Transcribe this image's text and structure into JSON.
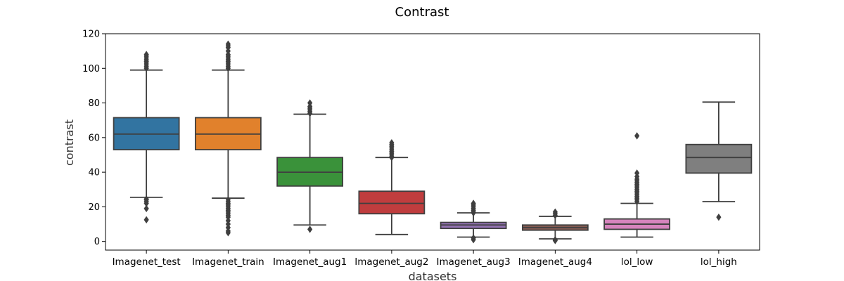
{
  "chart_data": {
    "type": "boxplot",
    "title": "Contrast",
    "xlabel": "datasets",
    "ylabel": "contrast",
    "ylim": [
      -5,
      120
    ],
    "yticks": [
      0,
      20,
      40,
      60,
      80,
      100,
      120
    ],
    "grid": false,
    "categories": [
      "Imagenet_test",
      "Imagenet_train",
      "Imagenet_aug1",
      "Imagenet_aug2",
      "Imagenet_aug3",
      "Imagenet_aug4",
      "lol_low",
      "lol_high"
    ],
    "boxes": [
      {
        "name": "Imagenet_test",
        "color": "#3274a1",
        "whislo": 25.5,
        "q1": 53,
        "med": 62,
        "q3": 71.5,
        "whishi": 99,
        "fliers": [
          12.5,
          19,
          22,
          23,
          24,
          24.5,
          100,
          101,
          102,
          103,
          104,
          105,
          106,
          107,
          108
        ]
      },
      {
        "name": "Imagenet_train",
        "color": "#e1812c",
        "whislo": 25,
        "q1": 53,
        "med": 62,
        "q3": 71.5,
        "whishi": 99,
        "fliers": [
          5,
          6,
          8,
          10,
          12,
          14,
          15,
          16,
          17,
          18,
          19,
          20,
          21,
          22,
          23,
          24,
          100,
          101,
          102,
          103,
          104,
          105,
          106,
          107,
          108,
          110,
          112,
          113,
          114
        ]
      },
      {
        "name": "Imagenet_aug1",
        "color": "#3a923a",
        "whislo": 9.5,
        "q1": 32,
        "med": 40,
        "q3": 48.5,
        "whishi": 73.5,
        "fliers": [
          7,
          74,
          75,
          76,
          77,
          78,
          80
        ]
      },
      {
        "name": "Imagenet_aug2",
        "color": "#c03d3e",
        "whislo": 4,
        "q1": 16,
        "med": 22,
        "q3": 29,
        "whishi": 48.5,
        "fliers": [
          48.5,
          49,
          50,
          51,
          52,
          53,
          54,
          55,
          56,
          57
        ]
      },
      {
        "name": "Imagenet_aug3",
        "color": "#9372b2",
        "whislo": 2.5,
        "q1": 7.5,
        "med": 9.5,
        "q3": 11,
        "whishi": 16.5,
        "fliers": [
          1,
          2,
          16.5,
          17,
          18,
          19,
          20,
          21,
          22
        ]
      },
      {
        "name": "Imagenet_aug4",
        "color": "#845b53",
        "whislo": 1.5,
        "q1": 6.5,
        "med": 8,
        "q3": 9.5,
        "whishi": 14.5,
        "fliers": [
          0.5,
          1,
          15,
          16,
          17
        ]
      },
      {
        "name": "lol_low",
        "color": "#d684bd",
        "whislo": 2.5,
        "q1": 7,
        "med": 10,
        "q3": 13,
        "whishi": 22,
        "fliers": [
          23,
          24,
          25,
          26,
          27,
          28,
          29,
          30,
          31,
          32,
          33,
          34,
          35,
          36,
          37.5,
          39.5,
          61
        ]
      },
      {
        "name": "lol_high",
        "color": "#7f7f7f",
        "whislo": 23,
        "q1": 39.5,
        "med": 48.5,
        "q3": 56,
        "whishi": 80.5,
        "fliers": [
          14
        ]
      }
    ]
  }
}
